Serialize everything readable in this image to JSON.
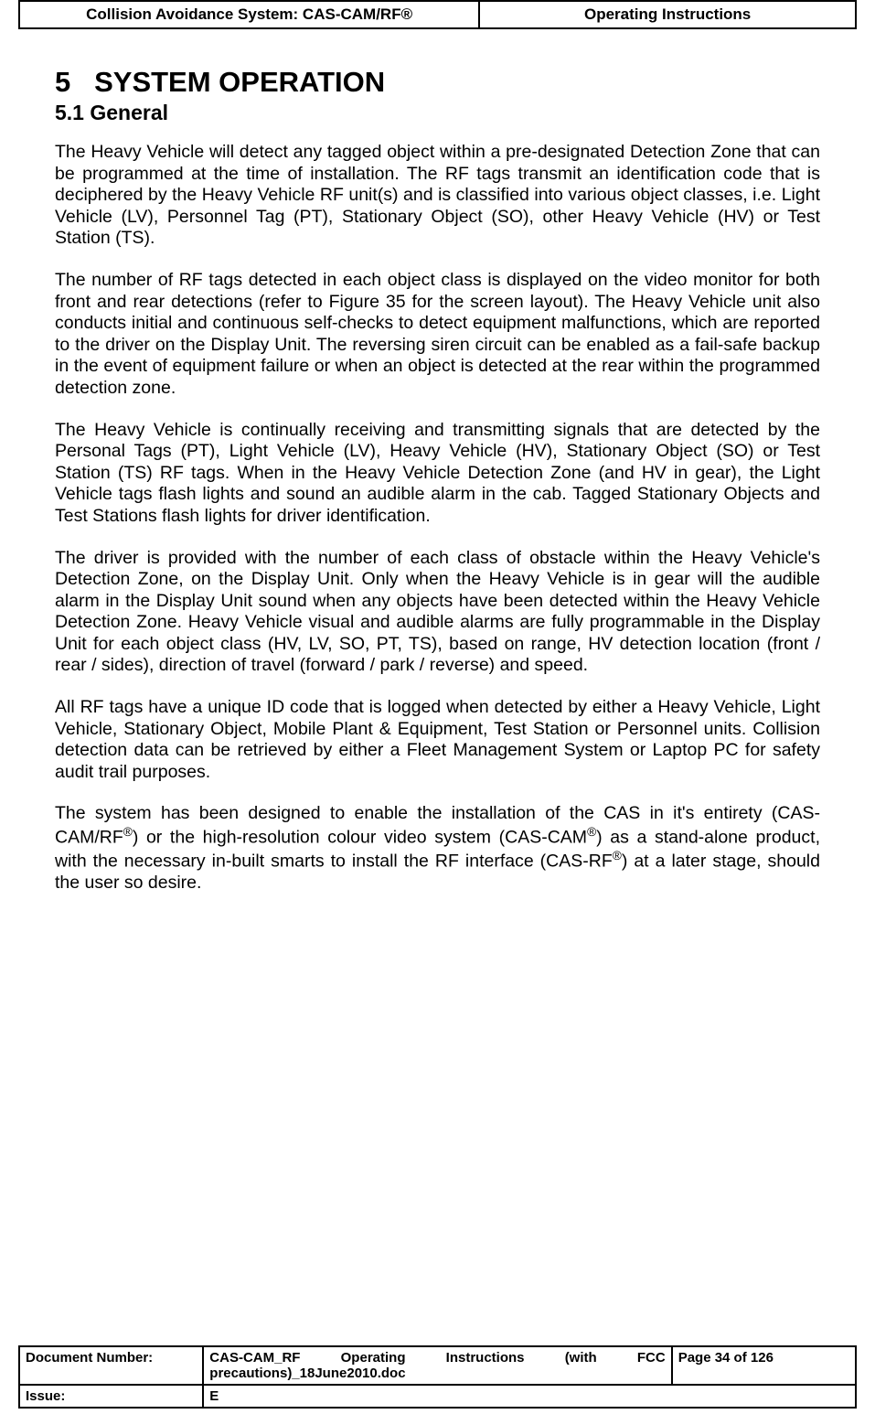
{
  "header": {
    "left": "Collision Avoidance System: CAS-CAM/RF®",
    "right": "Operating Instructions"
  },
  "content": {
    "section_number": "5",
    "section_title": "SYSTEM OPERATION",
    "subsection_number": "5.1",
    "subsection_title": "General",
    "p1": "The Heavy Vehicle will detect any tagged object within a pre-designated Detection Zone that can be programmed at the time of installation. The RF tags transmit an identification code that is deciphered by the Heavy Vehicle RF unit(s) and is classified into various object classes, i.e. Light Vehicle (LV), Personnel Tag (PT), Stationary Object (SO), other Heavy Vehicle (HV) or Test Station (TS).",
    "p2": "The number of RF tags detected in each object class is displayed on the video monitor for both front and rear detections (refer to Figure 35 for the screen layout). The Heavy Vehicle unit also conducts initial and continuous self-checks to detect equipment malfunctions, which are reported to the driver on the Display Unit. The reversing siren circuit can be enabled as a fail-safe backup in the event of equipment failure or when an object is detected at the rear within the programmed detection zone.",
    "p3": "The Heavy Vehicle is continually receiving and transmitting signals that are detected by the Personal Tags (PT), Light Vehicle (LV), Heavy Vehicle (HV), Stationary Object (SO) or Test Station (TS) RF tags. When in the Heavy Vehicle Detection Zone (and HV in gear), the Light Vehicle tags flash lights and sound an audible alarm in the cab. Tagged Stationary Objects and Test Stations flash lights for driver identification.",
    "p4": "The driver is provided with the number of each class of obstacle within the Heavy Vehicle's Detection Zone, on the Display Unit. Only when the Heavy Vehicle is in gear will the audible alarm in the Display Unit sound when any objects have been detected within the Heavy Vehicle Detection Zone. Heavy Vehicle visual and audible alarms are fully programmable in the Display Unit for each object class (HV, LV, SO, PT, TS), based on range, HV detection location (front / rear / sides), direction of travel (forward / park / reverse) and speed.",
    "p5": "All RF tags have a unique ID code that is logged when detected by either a Heavy Vehicle, Light Vehicle, Stationary Object, Mobile Plant & Equipment, Test Station or Personnel units. Collision detection data can be retrieved by either a Fleet Management System or Laptop PC for safety audit trail purposes.",
    "p6_part1": "The system has been designed to enable the installation of the CAS in it's entirety (CAS-CAM/RF",
    "p6_part2": ") or the high-resolution colour video system (CAS-CAM",
    "p6_part3": ") as a stand-alone product, with the necessary in-built smarts to install the RF interface (CAS-RF",
    "p6_part4": ") at a later stage, should the user so desire.",
    "reg": "®"
  },
  "footer": {
    "doc_num_label": "Document Number:",
    "doc_num_value": "CAS-CAM_RF Operating Instructions (with FCC precautions)_18June2010.doc",
    "page_label": "Page 34 of  126",
    "issue_label": "Issue:",
    "issue_value": "E"
  }
}
